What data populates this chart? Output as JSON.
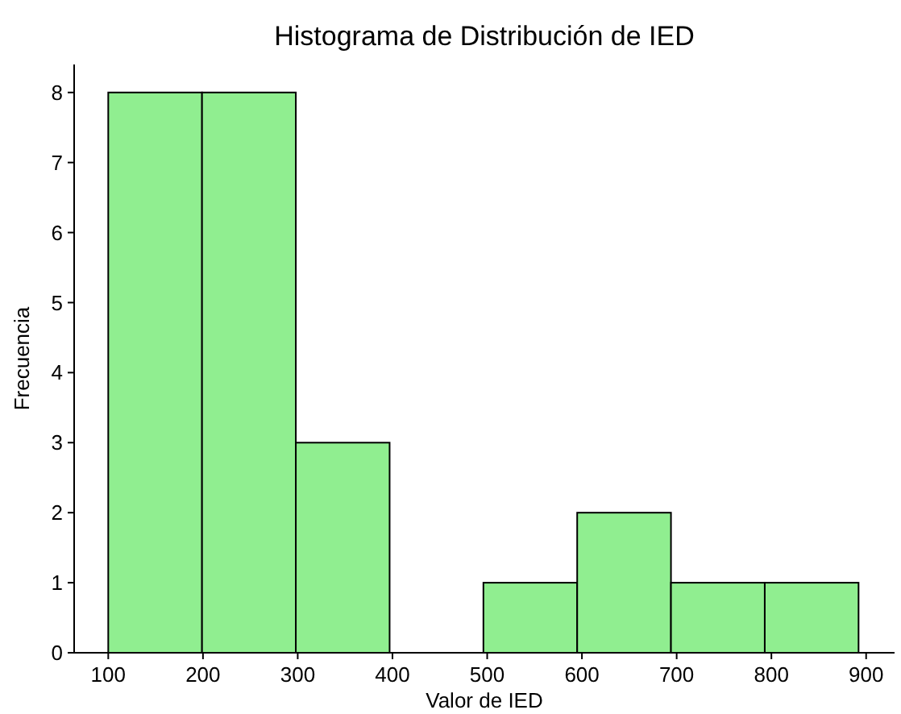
{
  "chart_data": {
    "type": "histogram",
    "title": "Histograma de Distribución de IED",
    "xlabel": "Valor de IED",
    "ylabel": "Frecuencia",
    "bins": [
      100,
      199,
      298,
      397,
      496,
      595,
      694,
      793,
      892
    ],
    "values": [
      8,
      8,
      3,
      0,
      1,
      2,
      1,
      1
    ],
    "color": "#90ee90",
    "xlim": [
      64,
      930
    ],
    "xticks": [
      100,
      200,
      300,
      400,
      500,
      600,
      700,
      800,
      900
    ],
    "ylim": [
      0,
      8.4
    ],
    "yticks": [
      0,
      1,
      2,
      3,
      4,
      5,
      6,
      7,
      8
    ],
    "grid": false
  }
}
